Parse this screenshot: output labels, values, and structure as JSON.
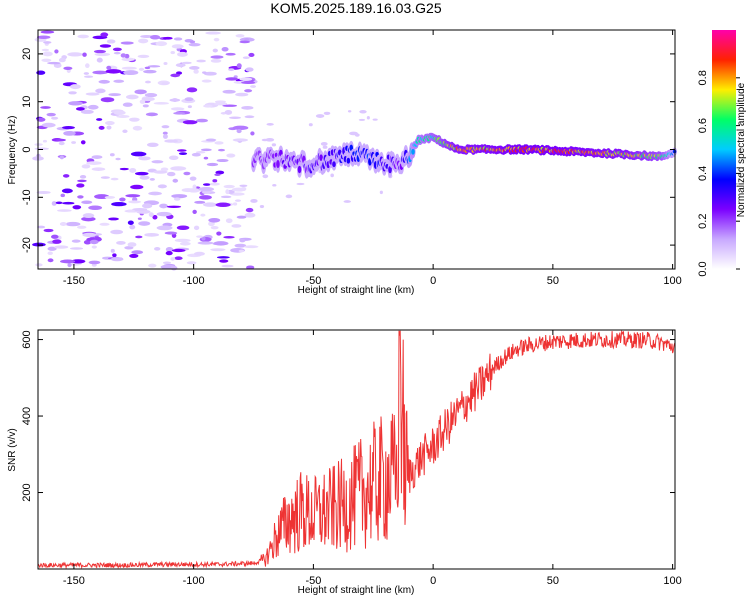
{
  "figure": {
    "title": "KOM5.2025.189.16.03.G25"
  },
  "chart_data": [
    {
      "type": "heatmap",
      "xlabel": "Height of straight line (km)",
      "ylabel": "Frequency (Hz)",
      "xlim": [
        -165,
        101
      ],
      "ylim": [
        -25,
        25
      ],
      "xticks": [
        -150,
        -100,
        -50,
        0,
        50,
        100
      ],
      "yticks": [
        -20,
        -10,
        0,
        10,
        20
      ],
      "colorbar": {
        "label": "Normalized spectral amplitude",
        "range": [
          0,
          1
        ],
        "ticks": [
          0.0,
          0.2,
          0.4,
          0.6,
          0.8
        ],
        "colormap": [
          "#ffffff",
          "#c8a8ff",
          "#7b00ff",
          "#0000ff",
          "#00ccff",
          "#00ff66",
          "#ffee00",
          "#ff2200",
          "#ff00aa"
        ]
      },
      "trace": {
        "x": [
          -75,
          -65,
          -55,
          -45,
          -35,
          -25,
          -18,
          -14,
          -10,
          -6,
          0,
          10,
          20,
          40,
          60,
          80,
          95,
          101
        ],
        "freq": [
          -2,
          -2,
          -3,
          -2.5,
          -1,
          -2,
          -3,
          -4,
          -1,
          2,
          2.5,
          0,
          0,
          0,
          -0.5,
          -1,
          -1.5,
          -0.5
        ],
        "amplitude": [
          0.22,
          0.25,
          0.28,
          0.3,
          0.35,
          0.4,
          0.3,
          0.25,
          0.45,
          0.55,
          0.6,
          0.78,
          0.8,
          0.85,
          0.82,
          0.78,
          0.65,
          0.4
        ]
      },
      "noise_region": {
        "x_range": [
          -165,
          -75
        ],
        "freq_range": [
          -25,
          25
        ],
        "amplitude_range": [
          0.05,
          0.2
        ]
      }
    },
    {
      "type": "line",
      "xlabel": "Height of straight line (km)",
      "ylabel": "SNR (v/v)",
      "xlim": [
        -165,
        101
      ],
      "ylim": [
        0,
        625
      ],
      "xticks": [
        -150,
        -100,
        -50,
        0,
        50,
        100
      ],
      "yticks": [
        200,
        400,
        600
      ],
      "color": "#ee3333",
      "x": [
        -165,
        -150,
        -130,
        -110,
        -90,
        -75,
        -70,
        -65,
        -60,
        -55,
        -50,
        -45,
        -40,
        -35,
        -30,
        -25,
        -20,
        -15,
        -14,
        -12,
        -10,
        -5,
        0,
        5,
        10,
        15,
        20,
        25,
        30,
        35,
        40,
        50,
        60,
        70,
        80,
        90,
        95,
        101
      ],
      "y": [
        10,
        10,
        10,
        12,
        12,
        15,
        25,
        90,
        130,
        150,
        140,
        150,
        160,
        175,
        200,
        220,
        235,
        240,
        610,
        270,
        245,
        290,
        320,
        365,
        405,
        445,
        480,
        525,
        555,
        575,
        585,
        595,
        598,
        600,
        600,
        598,
        592,
        580
      ]
    }
  ]
}
